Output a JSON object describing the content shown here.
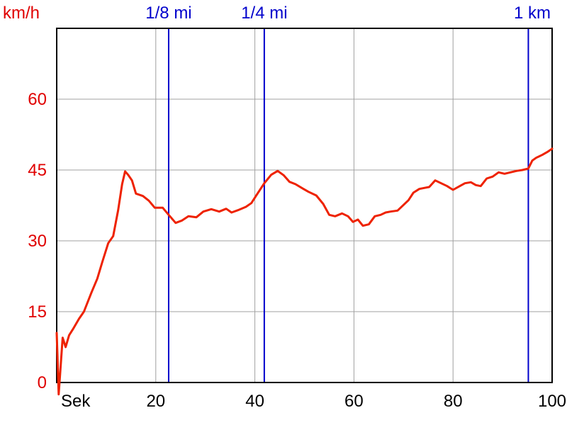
{
  "chart_data": {
    "type": "line",
    "ylabel": "km/h",
    "xlabel": "Sek",
    "xlim": [
      0,
      100
    ],
    "ylim": [
      0,
      75
    ],
    "x_ticks": [
      20,
      40,
      60,
      80,
      100
    ],
    "y_ticks": [
      0,
      15,
      30,
      45,
      60
    ],
    "grid": true,
    "colors": {
      "series": "#ee2200",
      "markers": "#0000cc",
      "y_axis_text": "#e00000",
      "grid": "#a0a0a0"
    },
    "markers": [
      {
        "label": "1/8 mi",
        "x": 22.6
      },
      {
        "label": "1/4 mi",
        "x": 41.9
      },
      {
        "label": "1 km",
        "x": 95.2
      }
    ],
    "series": [
      {
        "x": [
          0,
          0.4,
          0.7,
          1.2,
          1.8,
          2.5,
          3.4,
          4.5,
          5.5,
          7.0,
          8.2,
          9.2,
          10.4,
          11.4,
          12.4,
          13.2,
          13.8,
          14.4,
          15.2,
          16.0,
          17.4,
          18.6,
          19.8,
          21.4,
          22.6,
          24.0,
          25.3,
          26.6,
          28.2,
          29.6,
          31.2,
          32.8,
          34.2,
          35.3,
          36.6,
          38.2,
          39.3,
          40.4,
          41.9,
          43.3,
          44.6,
          45.8,
          47.0,
          48.2,
          49.8,
          50.8,
          52.4,
          53.8,
          55.0,
          56.2,
          57.6,
          58.8,
          59.8,
          60.8,
          61.8,
          63.0,
          64.2,
          65.4,
          66.4,
          67.4,
          68.8,
          69.8,
          71.0,
          72.0,
          73.2,
          74.2,
          75.2,
          76.4,
          77.6,
          78.8,
          80.0,
          81.2,
          82.4,
          83.6,
          84.6,
          85.6,
          86.8,
          88.0,
          89.2,
          90.4,
          91.6,
          92.8,
          94.0,
          95.2,
          96.0,
          96.8,
          98.0,
          99.0,
          100.0
        ],
        "y": [
          10.5,
          -2.5,
          2.0,
          9.5,
          7.5,
          10.0,
          11.5,
          13.5,
          15.0,
          19.0,
          22.0,
          25.5,
          29.5,
          31.0,
          36.5,
          42.0,
          44.7,
          44.0,
          42.8,
          40.0,
          39.5,
          38.5,
          37.0,
          37.0,
          35.5,
          33.8,
          34.3,
          35.2,
          35.0,
          36.2,
          36.7,
          36.2,
          36.8,
          36.0,
          36.5,
          37.2,
          38.0,
          39.8,
          42.2,
          44.0,
          44.8,
          43.9,
          42.5,
          42.0,
          41.0,
          40.4,
          39.6,
          37.8,
          35.5,
          35.2,
          35.8,
          35.2,
          34.0,
          34.5,
          33.2,
          33.5,
          35.2,
          35.5,
          36.0,
          36.2,
          36.4,
          37.4,
          38.6,
          40.2,
          41.0,
          41.2,
          41.4,
          42.8,
          42.2,
          41.6,
          40.8,
          41.5,
          42.2,
          42.4,
          41.8,
          41.6,
          43.2,
          43.6,
          44.5,
          44.2,
          44.5,
          44.8,
          45.0,
          45.3,
          47.0,
          47.6,
          48.2,
          48.8,
          49.5
        ]
      }
    ]
  }
}
